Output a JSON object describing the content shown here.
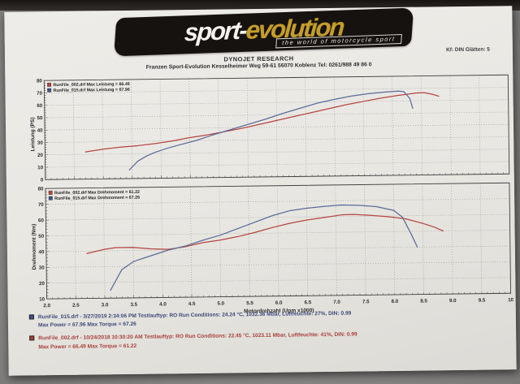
{
  "logo": {
    "brand_sport": "sport-",
    "brand_evolution": "evolution",
    "tagline": "the world of motorcycle sport"
  },
  "header": {
    "kf": "Kf: DIN  Glätten: 5",
    "title": "DYNOJET RESEARCH",
    "address": "Franzen Sport-Evolution    Kesselheimer Weg 59-61    56070 Koblenz    Tel: 0261/988 49 86 0"
  },
  "axis": {
    "x_title": "Motordrehzahl (Upm x1000)",
    "power_y_title": "Leistung (PS)",
    "torque_y_title": "Drehmoment (Nm)"
  },
  "colors": {
    "run_002_red": "#b5443f",
    "run_015_blue": "#5b6b99",
    "grid": "#9b9b98",
    "axis": "#3f3f3f",
    "paper": "#e9e7e2"
  },
  "chart_data": [
    {
      "type": "line",
      "title": "",
      "xlabel": "",
      "ylabel": "Leistung (PS)",
      "xlim": [
        2.0,
        10.0
      ],
      "ylim": [
        0,
        80
      ],
      "xticks": [
        2.0,
        2.5,
        3.0,
        3.5,
        4.0,
        4.5,
        5.0,
        5.5,
        6.0,
        6.5,
        7.0,
        7.5,
        8.0,
        8.5,
        9.0,
        9.5,
        10.0
      ],
      "xtick_labels": [],
      "yticks": [
        0,
        10,
        20,
        30,
        40,
        50,
        60,
        70,
        80
      ],
      "grid": true,
      "legend_position": "top-left",
      "legend": [
        {
          "label": "RunFile_002.drf Max Leistung = 66.49",
          "color": "#b5443f"
        },
        {
          "label": "RunFile_015.drf Max Leistung = 67.96",
          "color": "#3c5288"
        }
      ],
      "series": [
        {
          "name": "RunFile_002.drf",
          "color": "#b5443f",
          "points": [
            [
              2.7,
              22
            ],
            [
              3.0,
              24
            ],
            [
              3.3,
              25.5
            ],
            [
              3.6,
              26.5
            ],
            [
              3.9,
              28
            ],
            [
              4.2,
              30
            ],
            [
              4.5,
              32.5
            ],
            [
              4.8,
              34.5
            ],
            [
              5.1,
              37
            ],
            [
              5.4,
              39.5
            ],
            [
              5.7,
              42.5
            ],
            [
              6.0,
              45.5
            ],
            [
              6.3,
              48.5
            ],
            [
              6.6,
              51.5
            ],
            [
              6.9,
              54.5
            ],
            [
              7.2,
              57.5
            ],
            [
              7.5,
              60
            ],
            [
              7.8,
              62.5
            ],
            [
              8.1,
              64.5
            ],
            [
              8.4,
              66.2
            ],
            [
              8.55,
              66.5
            ],
            [
              8.7,
              65
            ],
            [
              8.8,
              63.5
            ]
          ]
        },
        {
          "name": "RunFile_015.drf",
          "color": "#5b6b99",
          "points": [
            [
              3.45,
              7
            ],
            [
              3.6,
              14
            ],
            [
              3.75,
              18
            ],
            [
              3.9,
              21
            ],
            [
              4.1,
              24
            ],
            [
              4.3,
              26.5
            ],
            [
              4.6,
              30
            ],
            [
              4.9,
              34.5
            ],
            [
              5.2,
              38.5
            ],
            [
              5.5,
              42.5
            ],
            [
              5.8,
              46.5
            ],
            [
              6.1,
              51
            ],
            [
              6.4,
              55
            ],
            [
              6.7,
              59
            ],
            [
              7.0,
              62
            ],
            [
              7.3,
              64.5
            ],
            [
              7.6,
              66.3
            ],
            [
              7.9,
              67.5
            ],
            [
              8.1,
              68
            ],
            [
              8.2,
              67.5
            ],
            [
              8.3,
              62
            ],
            [
              8.35,
              54
            ]
          ]
        }
      ]
    },
    {
      "type": "line",
      "title": "",
      "xlabel": "Motordrehzahl (Upm x1000)",
      "ylabel": "Drehmoment (Nm)",
      "xlim": [
        2.0,
        10.0
      ],
      "ylim": [
        10,
        80
      ],
      "xticks": [
        2.0,
        2.5,
        3.0,
        3.5,
        4.0,
        4.5,
        5.0,
        5.5,
        6.0,
        6.5,
        7.0,
        7.5,
        8.0,
        8.5,
        9.0,
        9.5,
        10.0
      ],
      "xtick_labels": [
        "2.0",
        "2.5",
        "3.0",
        "3.5",
        "4.0",
        "4.5",
        "5.0",
        "5.5",
        "6.0",
        "6.5",
        "7.0",
        "7.5",
        "8.0",
        "8.5",
        "9.0",
        "9.5",
        "10"
      ],
      "yticks": [
        10,
        20,
        30,
        40,
        50,
        60,
        70,
        80
      ],
      "grid": true,
      "legend_position": "top-left",
      "legend": [
        {
          "label": "RunFile_002.drf Max Drehmoment = 61.22",
          "color": "#b5443f"
        },
        {
          "label": "RunFile_015.drf Max Drehmoment = 67.26",
          "color": "#3c5288"
        }
      ],
      "series": [
        {
          "name": "RunFile_002.drf",
          "color": "#b5443f",
          "points": [
            [
              2.7,
              38.5
            ],
            [
              3.0,
              41
            ],
            [
              3.2,
              42
            ],
            [
              3.5,
              42
            ],
            [
              3.8,
              41
            ],
            [
              4.1,
              40.5
            ],
            [
              4.4,
              42
            ],
            [
              4.7,
              44.5
            ],
            [
              5.0,
              46
            ],
            [
              5.3,
              48
            ],
            [
              5.6,
              50.5
            ],
            [
              5.9,
              53.5
            ],
            [
              6.2,
              56
            ],
            [
              6.5,
              58
            ],
            [
              6.8,
              59.5
            ],
            [
              7.1,
              61
            ],
            [
              7.3,
              61.2
            ],
            [
              7.6,
              60.5
            ],
            [
              7.9,
              59.5
            ],
            [
              8.2,
              58
            ],
            [
              8.5,
              55
            ],
            [
              8.7,
              52.5
            ],
            [
              8.85,
              50
            ]
          ]
        },
        {
          "name": "RunFile_015.drf",
          "color": "#5b6b99",
          "points": [
            [
              3.1,
              15
            ],
            [
              3.3,
              28
            ],
            [
              3.5,
              33
            ],
            [
              3.8,
              36.5
            ],
            [
              4.1,
              40
            ],
            [
              4.4,
              42.5
            ],
            [
              4.7,
              46
            ],
            [
              5.0,
              49
            ],
            [
              5.3,
              53
            ],
            [
              5.6,
              57
            ],
            [
              5.9,
              61
            ],
            [
              6.2,
              64
            ],
            [
              6.5,
              65.5
            ],
            [
              6.8,
              66.5
            ],
            [
              7.1,
              67.3
            ],
            [
              7.4,
              67
            ],
            [
              7.7,
              66
            ],
            [
              8.0,
              63.5
            ],
            [
              8.15,
              59
            ],
            [
              8.3,
              48
            ],
            [
              8.4,
              40
            ]
          ]
        }
      ]
    }
  ],
  "summary": [
    {
      "line1": "RunFile_015.drf - 3/27/2019 2:34:06 PM   Testlauftyp: RO   Run Conditions: 24.24 °C, 1032.36 Mbar, Luftfeuchte: 27%, DIN: 0.99",
      "line2": "Max Power = 67.96   Max Torque = 67.26"
    },
    {
      "line1": "RunFile_002.drf - 10/24/2018 10:30:20 AM   Testlauftyp: RO   Run Conditions: 22.45 °C, 1023.11 Mbar, Luftfeuchte: 41%, DIN: 0.99",
      "line2": "Max Power = 66.49   Max Torque = 61.22"
    }
  ]
}
